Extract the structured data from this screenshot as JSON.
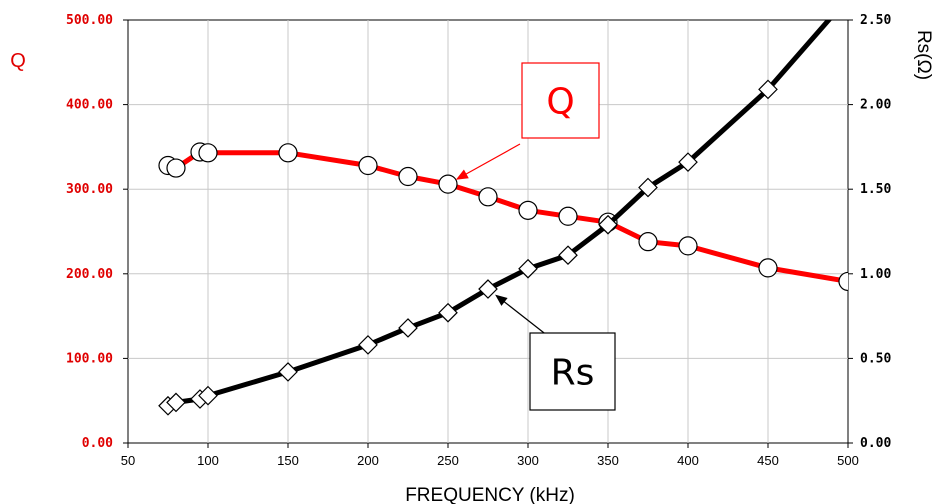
{
  "chart_data": {
    "type": "line",
    "xlabel": "FREQUENCY (kHz)",
    "ylabel_left": "Q",
    "ylabel_right": "Rs(Ω)",
    "xlim": [
      50,
      500
    ],
    "ylim_left": [
      0,
      500
    ],
    "ylim_right": [
      0,
      2.5
    ],
    "grid": true,
    "x_ticks": [
      "50",
      "100",
      "150",
      "200",
      "250",
      "300",
      "350",
      "400",
      "450",
      "500"
    ],
    "y_ticks_left": [
      "0.00",
      "100.00",
      "200.00",
      "300.00",
      "400.00",
      "500.00"
    ],
    "y_ticks_right": [
      "0.00",
      "0.50",
      "1.00",
      "1.50",
      "2.00",
      "2.50"
    ],
    "series": [
      {
        "name": "Q",
        "axis": "left",
        "color": "#ff0000",
        "marker": "circle",
        "x": [
          75,
          80,
          95,
          100,
          150,
          200,
          225,
          250,
          275,
          300,
          325,
          350,
          375,
          400,
          450,
          500
        ],
        "y": [
          328,
          325,
          344,
          343,
          343,
          328,
          315,
          306,
          291,
          275,
          268,
          261,
          238,
          233,
          207,
          191
        ]
      },
      {
        "name": "Rs",
        "axis": "right",
        "color": "#000000",
        "marker": "diamond",
        "x": [
          75,
          80,
          95,
          100,
          150,
          200,
          225,
          250,
          275,
          300,
          325,
          350,
          375,
          400,
          450,
          500
        ],
        "y": [
          0.22,
          0.24,
          0.26,
          0.28,
          0.42,
          0.58,
          0.68,
          0.77,
          0.91,
          1.03,
          1.11,
          1.29,
          1.51,
          1.66,
          2.09,
          2.63
        ]
      }
    ],
    "annotations": [
      {
        "text": "Q",
        "color": "#ff0000",
        "points_to": {
          "x": 250,
          "y": 306,
          "axis": "left"
        }
      },
      {
        "text": "Rs",
        "color": "#000000",
        "points_to": {
          "x": 275,
          "y": 0.91,
          "axis": "right"
        }
      }
    ]
  }
}
